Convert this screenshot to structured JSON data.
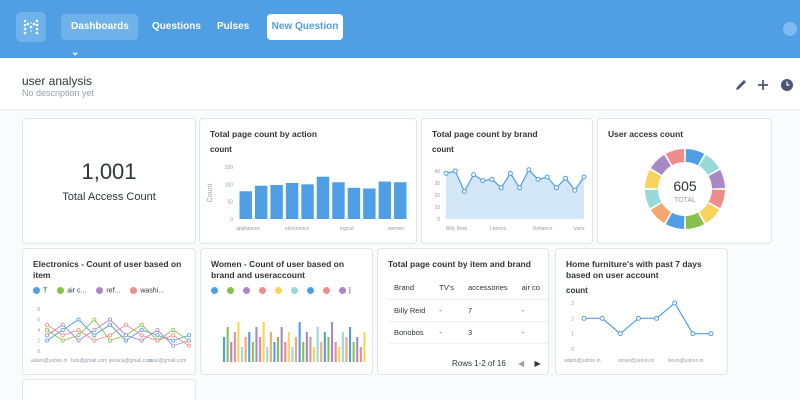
{
  "nav": {
    "items": [
      {
        "label": "Dashboards ⌄"
      },
      {
        "label": "Questions"
      },
      {
        "label": "Pulses"
      }
    ],
    "new_question": "New Question"
  },
  "header": {
    "title": "user analysis",
    "description": "No description yet",
    "icons": [
      "pencil-icon",
      "plus-icon",
      "clock-icon"
    ]
  },
  "colors": {
    "nav": "#509ee3",
    "bar": "#509ee3",
    "accent_area": "#c9e1f6"
  },
  "cards": {
    "access": {
      "value": "1,001",
      "label": "Total Access Count"
    },
    "by_action": {
      "title": "Total page count by action",
      "subtitle": "count",
      "chart_data": {
        "type": "bar",
        "ylabel": "Count",
        "ylim": [
          0,
          150
        ],
        "yticks": [
          "0",
          "50",
          "100",
          "150"
        ],
        "xticks": [
          "appliances",
          "electronics",
          "logout",
          "women"
        ],
        "values": [
          80,
          96,
          98,
          104,
          100,
          122,
          106,
          90,
          88,
          108,
          106
        ]
      }
    },
    "by_brand": {
      "title": "Total page count by brand",
      "subtitle": "count",
      "chart_data": {
        "type": "area",
        "ylim": [
          0,
          50
        ],
        "yticks": [
          "0",
          "10",
          "20",
          "30",
          "40"
        ],
        "xticks": [
          "Billy Reid",
          "Lenovo",
          "Reliance",
          "Vans"
        ],
        "values": [
          38,
          40,
          23,
          37,
          32,
          33,
          26,
          38,
          26,
          41,
          33,
          35,
          26,
          34,
          24,
          35
        ]
      }
    },
    "user_access": {
      "title": "User access count",
      "center_value": "605",
      "center_label": "TOTAL",
      "chart_data": {
        "type": "pie",
        "values": [
          1,
          1,
          1,
          1,
          1,
          1,
          1,
          1,
          1,
          1,
          1,
          1
        ],
        "colors": [
          "#509ee3",
          "#98d9d9",
          "#a989c5",
          "#ef8c8c",
          "#f9d45c",
          "#88bf4d",
          "#509ee3",
          "#f2a86f",
          "#98d9d9",
          "#f9d45c",
          "#a989c5",
          "#ef8c8c"
        ]
      }
    },
    "electronics": {
      "title": "Electronics - Count of user based on item",
      "legend": [
        {
          "label": "T",
          "color": "#509ee3"
        },
        {
          "label": "air c...",
          "color": "#88bf4d"
        },
        {
          "label": "ref...",
          "color": "#a989c5"
        },
        {
          "label": "washi...",
          "color": "#ef8c8c"
        }
      ],
      "chart_data": {
        "type": "line",
        "yticks": [
          "0",
          "2",
          "4",
          "6",
          "8"
        ],
        "xticks": [
          "adam@yahoo.in",
          "bob@gmail.com",
          "jessica@gmail.com",
          "paul@gmail.com"
        ],
        "series": [
          {
            "color": "#509ee3",
            "values": [
              2,
              4,
              6,
              3,
              5,
              2,
              4,
              3,
              2,
              3
            ]
          },
          {
            "color": "#88bf4d",
            "values": [
              4,
              2,
              3,
              6,
              2,
              3,
              5,
              2,
              4,
              2
            ]
          },
          {
            "color": "#a989c5",
            "values": [
              3,
              5,
              2,
              4,
              6,
              3,
              2,
              4,
              1,
              2
            ]
          },
          {
            "color": "#ef8c8c",
            "values": [
              5,
              3,
              4,
              2,
              3,
              5,
              3,
              2,
              3,
              1
            ]
          }
        ]
      }
    },
    "women": {
      "title": "Women - Count of user based on brand and useraccount",
      "legend_colors": [
        "#509ee3",
        "#88bf4d",
        "#a989c5",
        "#ef8c8c",
        "#f9d45c",
        "#98d9d9",
        "#509ee3",
        "#ef8c8c",
        "#a989c5"
      ],
      "legend_labels": [
        "",
        "",
        "",
        "",
        "",
        "",
        "",
        "",
        "|"
      ],
      "chart_data": {
        "type": "bar",
        "bar_colors": [
          "#509ee3",
          "#88bf4d",
          "#a989c5",
          "#ef8c8c",
          "#f9d45c",
          "#98d9d9",
          "#f2a86f"
        ],
        "values": [
          5,
          7,
          4,
          6,
          8,
          3,
          5,
          6,
          4,
          7,
          5,
          8,
          3,
          6,
          4,
          5,
          7,
          4,
          6,
          3,
          5,
          8,
          4,
          6,
          5,
          3,
          7,
          4,
          6,
          5,
          8,
          4,
          3,
          6,
          5,
          7,
          4,
          5,
          3,
          6
        ]
      }
    },
    "item_brand": {
      "title": "Total page count by item and brand",
      "columns": [
        "Brand",
        "TV's",
        "accessories",
        "air co"
      ],
      "rows": [
        [
          "Billy Reid",
          "-",
          "7",
          "-"
        ],
        [
          "Bonobos",
          "-",
          "3",
          "-"
        ]
      ],
      "pager": "Rows 1-2 of 16"
    },
    "furniture": {
      "title": "Home furniture's with past 7 days based on user account",
      "subtitle": "count",
      "chart_data": {
        "type": "line",
        "yticks": [
          "0",
          "1",
          "2",
          "3"
        ],
        "xticks": [
          "adam@yahoo.in",
          "essar@yahoo.in",
          "kevin@yahoo.in"
        ],
        "values": [
          2,
          2,
          1,
          2,
          2,
          3,
          1,
          1
        ]
      }
    }
  }
}
